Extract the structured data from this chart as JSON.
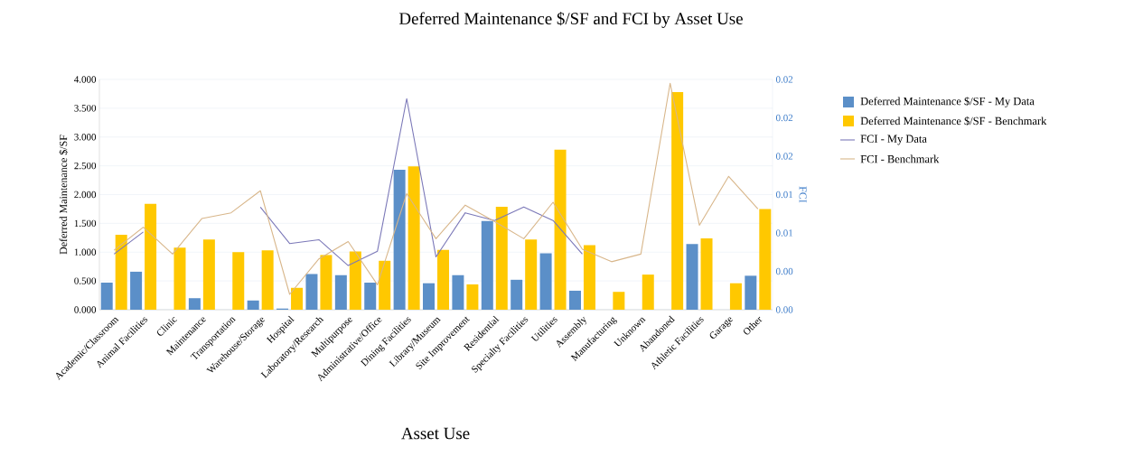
{
  "chart_data": {
    "type": "bar",
    "title": "Deferred Maintenance $/SF and FCI by Asset Use",
    "xlabel": "Asset Use",
    "ylabel": "Deferred Maintenance $/SF",
    "y2label": "FCI",
    "categories": [
      "Academic/Classroom",
      "Animal Facilities",
      "Clinic",
      "Maintenance",
      "Transportation",
      "Warehouse/Storage",
      "Hospital",
      "Laboratory/Research",
      "Multipurpose",
      "Administrative/Office",
      "Dining Facilities",
      "Library/Museum",
      "Site Improvement",
      "Residential",
      "Specialty Facilities",
      "Utilities",
      "Assembly",
      "Manufacturing",
      "Unknown",
      "Abandoned",
      "Athletic Facilities",
      "Garage",
      "Other"
    ],
    "series": [
      {
        "name": "Deferred Maintenance $/SF - My Data",
        "color": "#5b8fc8",
        "values": [
          0.47,
          0.66,
          null,
          0.2,
          null,
          0.16,
          0.02,
          0.62,
          0.6,
          0.47,
          2.43,
          0.46,
          0.6,
          1.54,
          0.52,
          0.98,
          0.33,
          null,
          null,
          null,
          1.14,
          null,
          0.59
        ]
      },
      {
        "name": "Deferred Maintenance $/SF - Benchmark",
        "color": "#ffc800",
        "values": [
          1.3,
          1.84,
          1.08,
          1.22,
          1.0,
          1.03,
          0.38,
          0.95,
          1.01,
          0.85,
          2.49,
          1.04,
          0.44,
          1.79,
          1.22,
          2.78,
          1.12,
          0.31,
          0.61,
          3.78,
          1.24,
          0.46,
          1.75
        ]
      },
      {
        "name": "FCI - My Data",
        "type": "line",
        "axis": "y2",
        "color": "#7b78b8",
        "values": [
          0.0058,
          0.0081,
          null,
          null,
          null,
          0.0107,
          0.0069,
          0.0073,
          0.0046,
          0.0061,
          0.022,
          0.0055,
          0.0101,
          0.0093,
          0.0107,
          0.0093,
          0.0058,
          null,
          null,
          null,
          null,
          null,
          null
        ]
      },
      {
        "name": "FCI - Benchmark",
        "type": "line",
        "axis": "y2",
        "color": "#d8b68a",
        "values": [
          0.0062,
          0.0086,
          0.0058,
          0.0095,
          0.0101,
          0.0124,
          0.0016,
          0.0053,
          0.0071,
          0.0026,
          0.0121,
          0.0074,
          0.0109,
          0.0092,
          0.0074,
          0.0112,
          0.0063,
          0.005,
          0.0058,
          0.0236,
          0.0088,
          0.0139,
          0.0105
        ]
      }
    ],
    "ylim": [
      0,
      4
    ],
    "yticks": [
      {
        "value": 0,
        "label": "0.000"
      },
      {
        "value": 0.5,
        "label": "0.500"
      },
      {
        "value": 1,
        "label": "1.000"
      },
      {
        "value": 1.5,
        "label": "1.500"
      },
      {
        "value": 2,
        "label": "2.000"
      },
      {
        "value": 2.5,
        "label": "2.500"
      },
      {
        "value": 3,
        "label": "3.000"
      },
      {
        "value": 3.5,
        "label": "3.500"
      },
      {
        "value": 4,
        "label": "4.000"
      }
    ],
    "y2lim": [
      0,
      0.024
    ],
    "y2ticks": [
      {
        "value": 0,
        "label": "0.00"
      },
      {
        "value": 0.004,
        "label": "0.00"
      },
      {
        "value": 0.008,
        "label": "0.01"
      },
      {
        "value": 0.012,
        "label": "0.01"
      },
      {
        "value": 0.016,
        "label": "0.02"
      },
      {
        "value": 0.02,
        "label": "0.02"
      },
      {
        "value": 0.024,
        "label": "0.02"
      }
    ],
    "grid": "y",
    "legend": "right",
    "marker": "none"
  }
}
